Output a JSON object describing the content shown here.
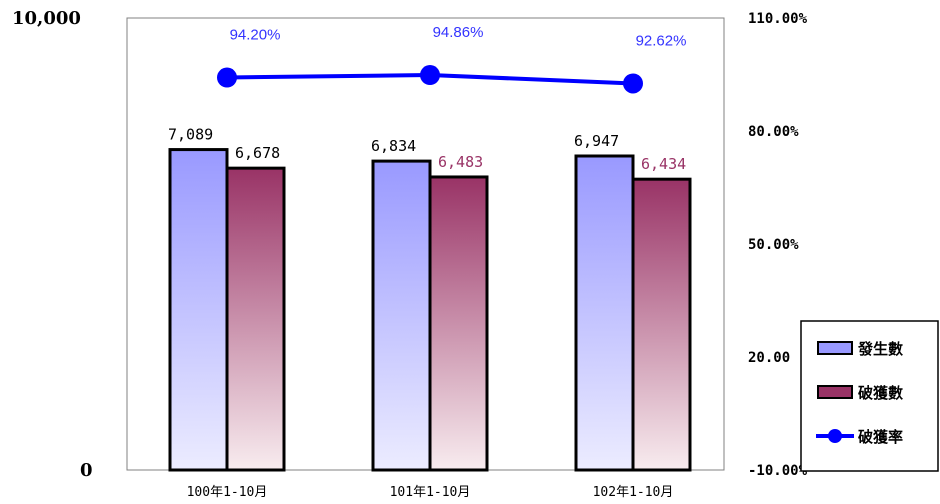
{
  "chart_data": {
    "type": "bar",
    "categories": [
      "100年1-10月",
      "101年1-10月",
      "102年1-10月"
    ],
    "series": [
      {
        "name": "發生數",
        "values": [
          7089,
          6834,
          6947
        ],
        "labels": [
          "7,089",
          "6,834",
          "6,947"
        ],
        "color": "#9999ff",
        "label_color": "#000000"
      },
      {
        "name": "破獲數",
        "values": [
          6678,
          6483,
          6434
        ],
        "labels": [
          "6,678",
          "6,483",
          "6,434"
        ],
        "color": "#993366",
        "label_color_first": "#000000",
        "label_color": "#993366"
      }
    ],
    "line_series": {
      "name": "破獲率",
      "values": [
        94.2,
        94.86,
        92.62
      ],
      "labels": [
        "94.20%",
        "94.86%",
        "92.62%"
      ],
      "color": "#0000ff"
    },
    "y_left": {
      "min": 0,
      "max": 10000,
      "ticks": [
        {
          "value": 0,
          "label": "0"
        },
        {
          "value": 10000,
          "label": "10,000"
        }
      ]
    },
    "y_right": {
      "min": -10,
      "max": 110,
      "ticks": [
        {
          "value": 110,
          "label": "110.00%"
        },
        {
          "value": 80,
          "label": "80.00%"
        },
        {
          "value": 50,
          "label": "50.00%"
        },
        {
          "value": 20,
          "label": "20.00"
        },
        {
          "value": -10,
          "label": "-10.00%"
        }
      ]
    },
    "legend": {
      "placement": "right",
      "entries": [
        "發生數",
        "破獲數",
        "破獲率"
      ]
    },
    "grid": false
  }
}
